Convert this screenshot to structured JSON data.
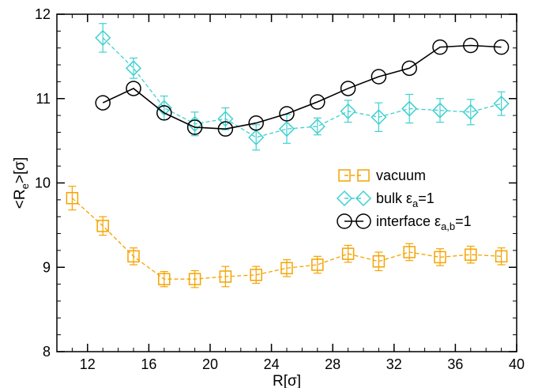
{
  "chart_data": {
    "type": "line",
    "title": "",
    "xlabel": "R[σ]",
    "ylabel_parts": {
      "pre": "<R",
      "sub": "e",
      "post": ">[σ]"
    },
    "xlim": [
      10,
      40
    ],
    "ylim": [
      8,
      12
    ],
    "x_ticks": [
      12,
      16,
      20,
      24,
      28,
      32,
      36,
      40
    ],
    "x_minor_step": 1,
    "y_ticks": [
      8,
      9,
      10,
      11,
      12
    ],
    "y_minor_step": 0.2,
    "grid": false,
    "legend_position": "center-right",
    "series": [
      {
        "name": "vacuum",
        "name_sub": "",
        "name_tail": "",
        "color": "#f5a300",
        "marker": "square",
        "line": "dashed",
        "x": [
          11,
          13,
          15,
          17,
          19,
          21,
          23,
          25,
          27,
          29,
          31,
          33,
          35,
          37,
          39
        ],
        "y": [
          9.82,
          9.49,
          9.13,
          8.86,
          8.86,
          8.89,
          8.91,
          8.99,
          9.03,
          9.16,
          9.07,
          9.18,
          9.12,
          9.15,
          9.13
        ],
        "err": [
          0.14,
          0.11,
          0.1,
          0.09,
          0.1,
          0.12,
          0.1,
          0.1,
          0.1,
          0.1,
          0.11,
          0.1,
          0.1,
          0.1,
          0.1
        ]
      },
      {
        "name": "bulk ε",
        "name_sub": "a",
        "name_tail": "=1",
        "color": "#40d0d0",
        "marker": "diamond",
        "line": "dashed",
        "x": [
          13,
          15,
          17,
          19,
          21,
          23,
          25,
          27,
          29,
          31,
          33,
          35,
          37,
          39
        ],
        "y": [
          11.72,
          11.36,
          10.89,
          10.7,
          10.76,
          10.54,
          10.64,
          10.67,
          10.85,
          10.78,
          10.88,
          10.86,
          10.84,
          10.94
        ],
        "err": [
          0.17,
          0.12,
          0.14,
          0.14,
          0.13,
          0.15,
          0.17,
          0.1,
          0.13,
          0.17,
          0.17,
          0.14,
          0.15,
          0.14
        ]
      },
      {
        "name": "interface ε",
        "name_sub": "a,b",
        "name_tail": "=1",
        "color": "#000000",
        "marker": "circle",
        "line": "solid",
        "x": [
          13,
          15,
          17,
          19,
          21,
          23,
          25,
          27,
          29,
          31,
          33,
          35,
          37,
          39
        ],
        "y": [
          10.95,
          11.12,
          10.83,
          10.66,
          10.64,
          10.71,
          10.82,
          10.96,
          11.12,
          11.26,
          11.36,
          11.61,
          11.63,
          11.61
        ],
        "err": []
      }
    ]
  }
}
